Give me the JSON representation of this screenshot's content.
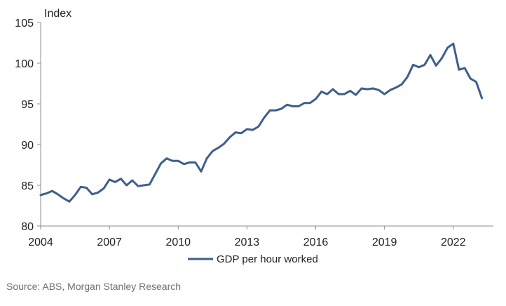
{
  "chart_data": {
    "type": "line",
    "ylabel": "Index",
    "ylim": [
      80,
      105
    ],
    "yticks": [
      80,
      85,
      90,
      95,
      100,
      105
    ],
    "xlim": [
      2004,
      2023.75
    ],
    "xticks": [
      2004,
      2007,
      2010,
      2013,
      2016,
      2019,
      2022
    ],
    "xtick_labels": [
      "2004",
      "2007",
      "2010",
      "2013",
      "2016",
      "2019",
      "2022"
    ],
    "grid": false,
    "legend_position": "bottom-center",
    "series": [
      {
        "name": "GDP per hour worked",
        "color": "#3d5f8c",
        "x": [
          2004.0,
          2004.25,
          2004.5,
          2004.75,
          2005.0,
          2005.25,
          2005.5,
          2005.75,
          2006.0,
          2006.25,
          2006.5,
          2006.75,
          2007.0,
          2007.25,
          2007.5,
          2007.75,
          2008.0,
          2008.25,
          2008.5,
          2008.75,
          2009.0,
          2009.25,
          2009.5,
          2009.75,
          2010.0,
          2010.25,
          2010.5,
          2010.75,
          2011.0,
          2011.25,
          2011.5,
          2011.75,
          2012.0,
          2012.25,
          2012.5,
          2012.75,
          2013.0,
          2013.25,
          2013.5,
          2013.75,
          2014.0,
          2014.25,
          2014.5,
          2014.75,
          2015.0,
          2015.25,
          2015.5,
          2015.75,
          2016.0,
          2016.25,
          2016.5,
          2016.75,
          2017.0,
          2017.25,
          2017.5,
          2017.75,
          2018.0,
          2018.25,
          2018.5,
          2018.75,
          2019.0,
          2019.25,
          2019.5,
          2019.75,
          2020.0,
          2020.25,
          2020.5,
          2020.75,
          2021.0,
          2021.25,
          2021.5,
          2021.75,
          2022.0,
          2022.25,
          2022.5,
          2022.75,
          2023.0,
          2023.25
        ],
        "values": [
          83.8,
          84.0,
          84.3,
          83.9,
          83.4,
          83.0,
          83.8,
          84.8,
          84.7,
          83.9,
          84.1,
          84.6,
          85.7,
          85.4,
          85.8,
          85.0,
          85.6,
          84.9,
          85.0,
          85.1,
          86.4,
          87.7,
          88.3,
          88.0,
          88.0,
          87.6,
          87.8,
          87.8,
          86.7,
          88.3,
          89.2,
          89.6,
          90.1,
          90.9,
          91.5,
          91.4,
          91.9,
          91.8,
          92.2,
          93.3,
          94.2,
          94.2,
          94.4,
          94.9,
          94.7,
          94.7,
          95.1,
          95.1,
          95.6,
          96.5,
          96.2,
          96.8,
          96.2,
          96.2,
          96.6,
          96.1,
          96.9,
          96.8,
          96.9,
          96.7,
          96.2,
          96.7,
          97.0,
          97.4,
          98.3,
          99.8,
          99.5,
          99.8,
          101.0,
          99.7,
          100.6,
          101.9,
          102.4,
          99.2,
          99.4,
          98.1,
          97.7,
          95.7
        ]
      }
    ]
  },
  "source": "Source: ABS, Morgan Stanley Research"
}
